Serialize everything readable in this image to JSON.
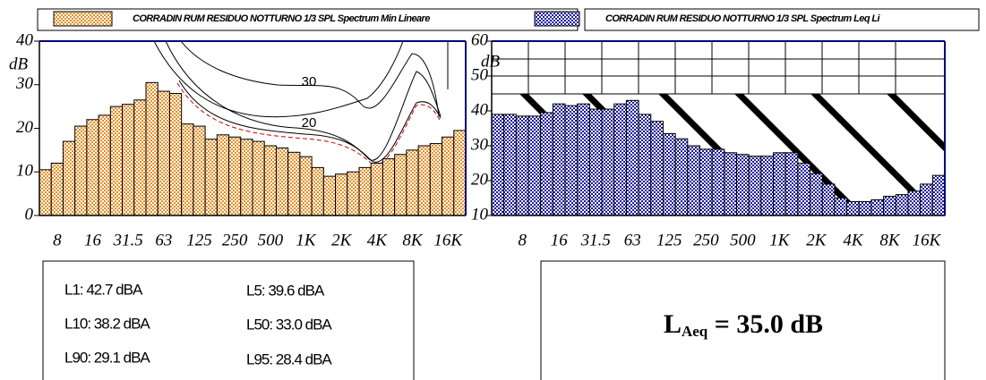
{
  "chart_data": [
    {
      "type": "bar",
      "series_name": "CORRADIN RUM RESIDUO NOTTURNO 1/3 SPL Spectrum Min Lineare",
      "color": "#e8902a",
      "ylabel": "dB",
      "categories": [
        null,
        "8",
        null,
        null,
        "16",
        null,
        null,
        "31.5",
        null,
        null,
        "63",
        null,
        null,
        "125",
        null,
        null,
        "250",
        null,
        null,
        "500",
        null,
        null,
        "1K",
        null,
        null,
        "2K",
        null,
        null,
        "4K",
        null,
        null,
        "8K",
        null,
        null,
        "16K",
        null
      ],
      "values": [
        10.5,
        12,
        17,
        20.5,
        22,
        23,
        25,
        25.5,
        26.5,
        30.5,
        28.5,
        28,
        21,
        20.5,
        17.5,
        18.5,
        18,
        17.5,
        17,
        16,
        15.5,
        14.5,
        13.5,
        11,
        9,
        9.5,
        10,
        11,
        12,
        13,
        14,
        15,
        16,
        16.5,
        18,
        19.5
      ],
      "ylim": [
        0,
        40
      ],
      "yticks": [
        0,
        10,
        20,
        30,
        40
      ],
      "annotations": [
        "30",
        "20"
      ]
    },
    {
      "type": "bar",
      "series_name": "CORRADIN RUM RESIDUO NOTTURNO 1/3 SPL Spectrum Leq Li",
      "color": "#1a1aa0",
      "ylabel": "dB",
      "categories": [
        null,
        null,
        "8",
        null,
        null,
        "16",
        null,
        null,
        "31.5",
        null,
        null,
        "63",
        null,
        null,
        "125",
        null,
        null,
        "250",
        null,
        null,
        "500",
        null,
        null,
        "1K",
        null,
        null,
        "2K",
        null,
        null,
        "4K",
        null,
        null,
        "8K",
        null,
        null,
        "16K",
        null
      ],
      "values": [
        39,
        39,
        38.5,
        38.5,
        39.5,
        42,
        41.5,
        42,
        40.5,
        40.5,
        42,
        43,
        39,
        37,
        33.5,
        32,
        30,
        29,
        29,
        28,
        27.5,
        27,
        27,
        28,
        28,
        25,
        22,
        19,
        15,
        14,
        14,
        14.5,
        15.5,
        16,
        17,
        19,
        21.5
      ],
      "ylim": [
        10,
        60
      ],
      "yticks": [
        10,
        20,
        30,
        40,
        50,
        60
      ]
    }
  ],
  "stats": {
    "items": [
      "L1: 42.7 dBA",
      "L5: 39.6 dBA",
      "L10: 38.2 dBA",
      "L50: 33.0 dBA",
      "L90: 29.1 dBA",
      "L95: 28.4 dBA"
    ],
    "laeq": {
      "symbol": "L",
      "subscript": "Aeq",
      "text": " = 35.0 dB"
    }
  }
}
